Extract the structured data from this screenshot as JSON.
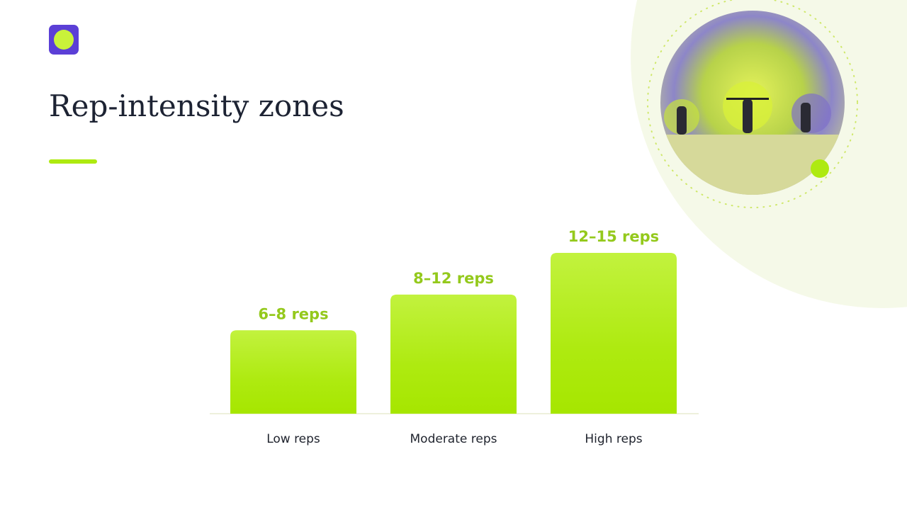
{
  "chart_data": {
    "type": "bar",
    "title": "Rep-intensity zones",
    "categories": [
      "Low reps",
      "Moderate reps",
      "High reps"
    ],
    "values": [
      7,
      10,
      13.5
    ],
    "value_labels": [
      "6–8 reps",
      "8–12 reps",
      "12–15 reps"
    ],
    "color": "#aeea10"
  }
}
